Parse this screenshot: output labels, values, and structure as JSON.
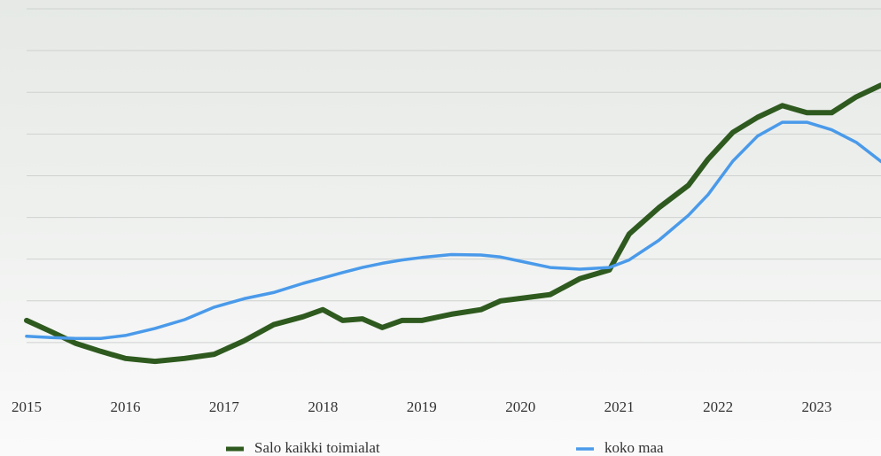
{
  "chart_data": {
    "type": "line",
    "x": [
      2015,
      2015.25,
      2015.5,
      2015.75,
      2016,
      2016.3,
      2016.6,
      2016.9,
      2017.2,
      2017.5,
      2017.8,
      2018,
      2018.2,
      2018.4,
      2018.6,
      2018.8,
      2019,
      2019.3,
      2019.6,
      2019.8,
      2020,
      2020.3,
      2020.6,
      2020.9,
      2021.1,
      2021.4,
      2021.7,
      2021.9,
      2022.15,
      2022.4,
      2022.65,
      2022.9,
      2023.15,
      2023.4,
      2023.65
    ],
    "series": [
      {
        "name": "Salo kaikki toimialat",
        "color": "#2f5a1f",
        "values": [
          0.53,
          0.26,
          -0.02,
          -0.21,
          -0.38,
          -0.45,
          -0.38,
          -0.28,
          0.04,
          0.43,
          0.62,
          0.79,
          0.53,
          0.57,
          0.36,
          0.53,
          0.53,
          0.68,
          0.79,
          1.0,
          1.06,
          1.15,
          1.53,
          1.74,
          2.6,
          3.23,
          3.77,
          4.4,
          5.04,
          5.4,
          5.68,
          5.51,
          5.51,
          5.89,
          6.17
        ]
      },
      {
        "name": "koko maa",
        "color": "#4a9aea",
        "values": [
          0.15,
          0.12,
          0.1,
          0.1,
          0.17,
          0.34,
          0.55,
          0.85,
          1.05,
          1.2,
          1.42,
          1.55,
          1.68,
          1.8,
          1.9,
          1.98,
          2.04,
          2.11,
          2.1,
          2.05,
          1.95,
          1.8,
          1.76,
          1.8,
          1.98,
          2.45,
          3.05,
          3.55,
          4.35,
          4.95,
          5.28,
          5.28,
          5.1,
          4.8,
          4.34
        ]
      }
    ],
    "xlim": [
      2015,
      2023.65
    ],
    "xticks": [
      2015,
      2016,
      2017,
      2018,
      2019,
      2020,
      2021,
      2022,
      2023
    ],
    "ylim": [
      -0.8,
      8
    ],
    "yticks": [
      0,
      1,
      2,
      3,
      4,
      5,
      6,
      7,
      8
    ],
    "ytick_labels": false,
    "grid": true
  }
}
